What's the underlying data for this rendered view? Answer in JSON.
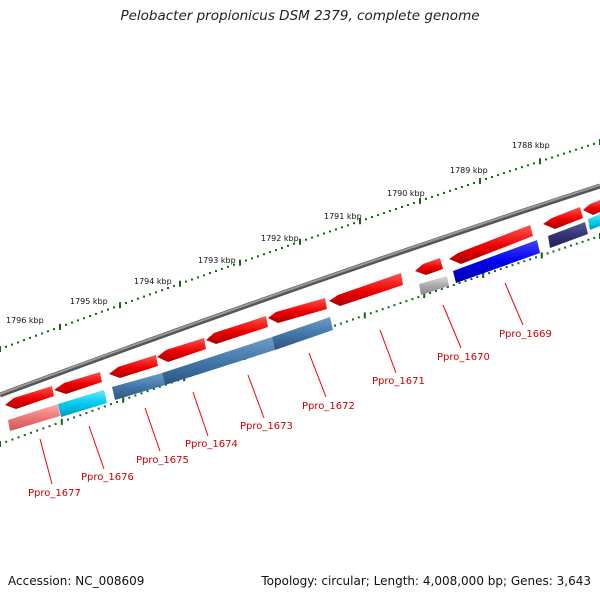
{
  "title": "Pelobacter propionicus DSM 2379, complete genome",
  "footer": {
    "accession": "Accession: NC_008609",
    "topology": "Topology: circular; Length: 4,008,000 bp; Genes: 3,643"
  },
  "kbp_labels": [
    "1788 kbp",
    "1789 kbp",
    "1790 kbp",
    "1791 kbp",
    "1792 kbp",
    "1793 kbp",
    "1794 kbp",
    "1795 kbp",
    "1796 kbp"
  ],
  "gene_labels": [
    "Ppro_1669",
    "Ppro_1670",
    "Ppro_1671",
    "Ppro_1672",
    "Ppro_1673",
    "Ppro_1674",
    "Ppro_1675",
    "Ppro_1676",
    "Ppro_1677"
  ],
  "colors": {
    "red": "#ee0000",
    "blue": "#0000ee",
    "steel": "#4477aa",
    "cyan": "#00ccee",
    "navy": "#333377",
    "pink": "#ee7777",
    "gray": "#aaaaaa",
    "tick": "#116611",
    "backbone": "#777777"
  }
}
